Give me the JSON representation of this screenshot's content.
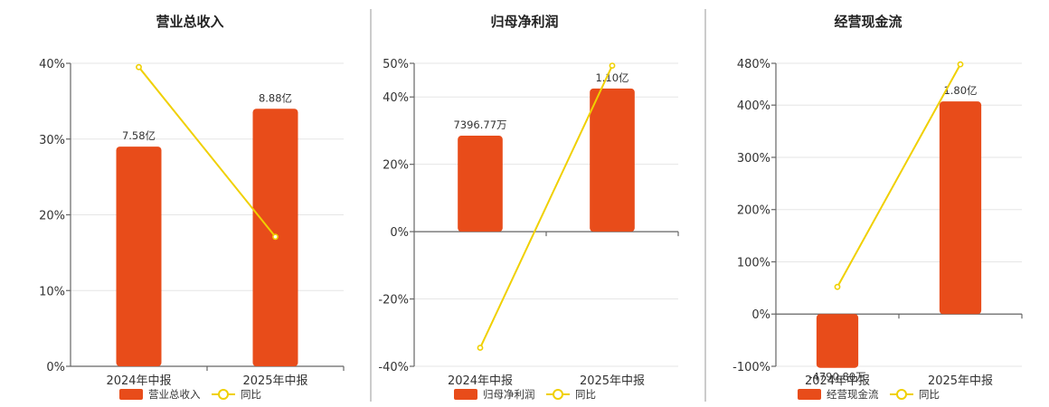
{
  "colors": {
    "bar": "#e84c1a",
    "line": "#f0d000",
    "grid": "#e6e6e6"
  },
  "chart_data": [
    {
      "type": "bar",
      "title": "营业总收入",
      "categories": [
        "2024年中报",
        "2025年中报"
      ],
      "series": [
        {
          "name": "营业总收入",
          "kind": "bar",
          "values": [
            29,
            34
          ],
          "labels": [
            "7.58亿",
            "8.88亿"
          ]
        },
        {
          "name": "同比",
          "kind": "line",
          "values": [
            39.5,
            17.1
          ]
        }
      ],
      "yticks": [
        "0%",
        "10%",
        "20%",
        "30%",
        "40%"
      ],
      "ylim": [
        0,
        40
      ]
    },
    {
      "type": "bar",
      "title": "归母净利润",
      "categories": [
        "2024年中报",
        "2025年中报"
      ],
      "series": [
        {
          "name": "归母净利润",
          "kind": "bar",
          "values": [
            28.5,
            42.5
          ],
          "labels": [
            "7396.77万",
            "1.10亿"
          ]
        },
        {
          "name": "同比",
          "kind": "line",
          "values": [
            -34.5,
            49.3
          ]
        }
      ],
      "yticks": [
        "-40%",
        "-20%",
        "0%",
        "20%",
        "40%",
        "50%"
      ],
      "ylim": [
        -40,
        50
      ]
    },
    {
      "type": "bar",
      "title": "经营现金流",
      "categories": [
        "2024年中报",
        "2025年中报"
      ],
      "series": [
        {
          "name": "经营现金流",
          "kind": "bar",
          "values": [
            -103,
            407
          ],
          "labels": [
            "-4790.80万",
            "1.80亿"
          ]
        },
        {
          "name": "同比",
          "kind": "line",
          "values": [
            52,
            478
          ]
        }
      ],
      "yticks": [
        "-100%",
        "0%",
        "100%",
        "200%",
        "300%",
        "400%",
        "480%"
      ],
      "ylim": [
        -100,
        480
      ]
    }
  ]
}
